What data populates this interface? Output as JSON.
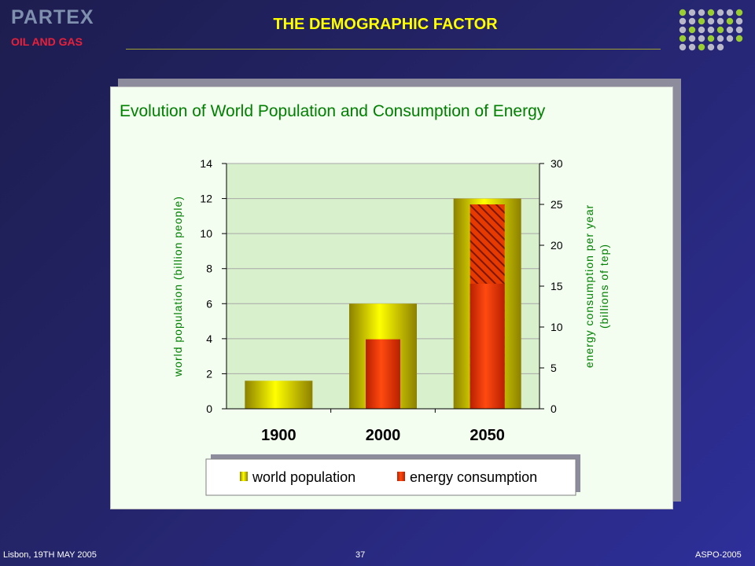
{
  "header": {
    "logo_main": "PARTEX",
    "logo_sub": "OIL AND GAS",
    "title": "THE DEMOGRAPHIC FACTOR"
  },
  "footer": {
    "left": "Lisbon, 19TH MAY 2005",
    "center": "37",
    "right": "ASPO-2005"
  },
  "colors": {
    "title_yellow": "#ffff00",
    "chart_green": "#008000",
    "population_bar": "#d4c400",
    "energy_bar": "#e63a00",
    "hatch": "#8b1a00"
  },
  "chart_data": {
    "type": "bar",
    "title": "Evolution of World Population and Consumption of Energy",
    "categories": [
      "1900",
      "2000",
      "2050"
    ],
    "ylabel_left": "world population (billion people)",
    "ylabel_right_line1": "energy consumption per year",
    "ylabel_right_line2": "(billions of tep)",
    "ylim_left": [
      0,
      14
    ],
    "ylim_right": [
      0,
      30
    ],
    "yticks_left": [
      "0",
      "2",
      "4",
      "6",
      "8",
      "10",
      "12",
      "14"
    ],
    "yticks_right": [
      "0",
      "5",
      "10",
      "15",
      "20",
      "25",
      "30"
    ],
    "grid": true,
    "legend_position": "bottom",
    "series": [
      {
        "name": "world population",
        "axis": "left",
        "values": [
          1.6,
          6.0,
          12.0
        ]
      },
      {
        "name": "energy consumption",
        "axis": "right",
        "values": [
          0,
          8.5,
          15.3
        ],
        "projected_top": [
          0,
          8.5,
          25.0
        ]
      }
    ]
  }
}
